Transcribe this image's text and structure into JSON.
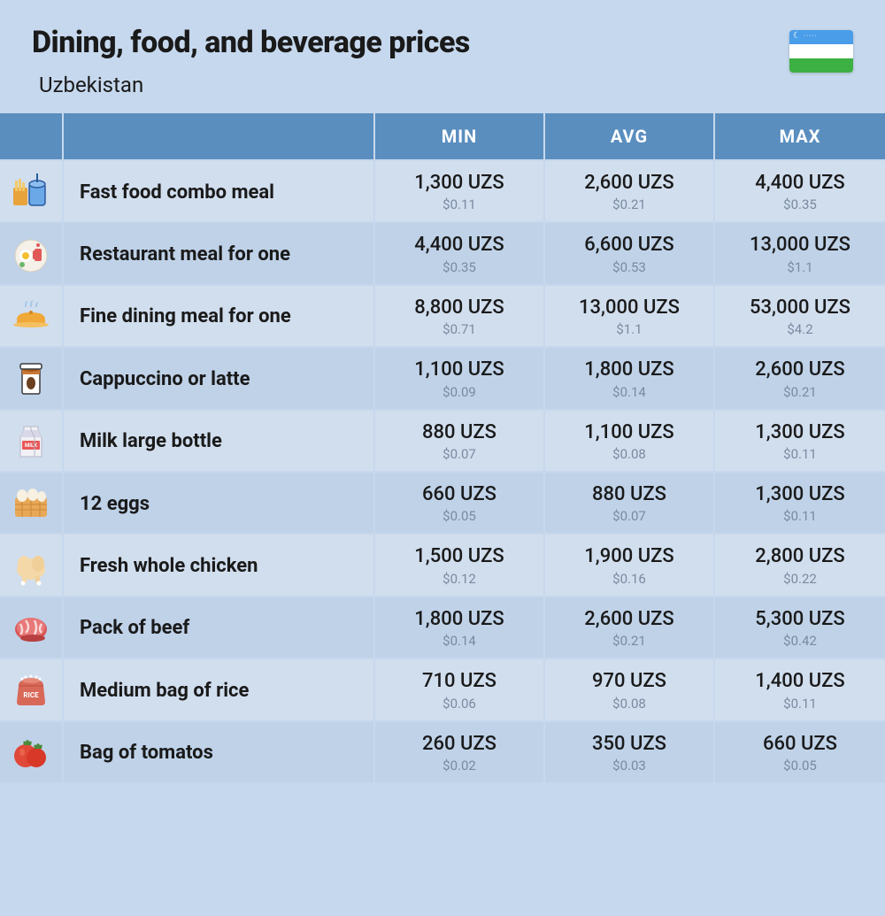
{
  "title": "Dining, food, and beverage prices",
  "subtitle": "Uzbekistan",
  "flag_colors": {
    "top": "#4a9de8",
    "mid": "#ffffff",
    "bot": "#3cb043"
  },
  "columns": {
    "min": "MIN",
    "avg": "AVG",
    "max": "MAX"
  },
  "header_bg": "#5a8ebf",
  "row_colors": {
    "odd": "#d1deee",
    "even": "#bfd2e8"
  },
  "background": "#c6d8ed",
  "rows": [
    {
      "icon": "fast-food",
      "label": "Fast food combo meal",
      "min_local": "1,300 UZS",
      "min_usd": "$0.11",
      "avg_local": "2,600 UZS",
      "avg_usd": "$0.21",
      "max_local": "4,400 UZS",
      "max_usd": "$0.35"
    },
    {
      "icon": "restaurant",
      "label": "Restaurant meal for one",
      "min_local": "4,400 UZS",
      "min_usd": "$0.35",
      "avg_local": "6,600 UZS",
      "avg_usd": "$0.53",
      "max_local": "13,000 UZS",
      "max_usd": "$1.1"
    },
    {
      "icon": "fine-dining",
      "label": "Fine dining meal for one",
      "min_local": "8,800 UZS",
      "min_usd": "$0.71",
      "avg_local": "13,000 UZS",
      "avg_usd": "$1.1",
      "max_local": "53,000 UZS",
      "max_usd": "$4.2"
    },
    {
      "icon": "coffee",
      "label": "Cappuccino or latte",
      "min_local": "1,100 UZS",
      "min_usd": "$0.09",
      "avg_local": "1,800 UZS",
      "avg_usd": "$0.14",
      "max_local": "2,600 UZS",
      "max_usd": "$0.21"
    },
    {
      "icon": "milk",
      "label": "Milk large bottle",
      "min_local": "880 UZS",
      "min_usd": "$0.07",
      "avg_local": "1,100 UZS",
      "avg_usd": "$0.08",
      "max_local": "1,300 UZS",
      "max_usd": "$0.11"
    },
    {
      "icon": "eggs",
      "label": "12 eggs",
      "min_local": "660 UZS",
      "min_usd": "$0.05",
      "avg_local": "880 UZS",
      "avg_usd": "$0.07",
      "max_local": "1,300 UZS",
      "max_usd": "$0.11"
    },
    {
      "icon": "chicken",
      "label": "Fresh whole chicken",
      "min_local": "1,500 UZS",
      "min_usd": "$0.12",
      "avg_local": "1,900 UZS",
      "avg_usd": "$0.16",
      "max_local": "2,800 UZS",
      "max_usd": "$0.22"
    },
    {
      "icon": "beef",
      "label": "Pack of beef",
      "min_local": "1,800 UZS",
      "min_usd": "$0.14",
      "avg_local": "2,600 UZS",
      "avg_usd": "$0.21",
      "max_local": "5,300 UZS",
      "max_usd": "$0.42"
    },
    {
      "icon": "rice",
      "label": "Medium bag of rice",
      "min_local": "710 UZS",
      "min_usd": "$0.06",
      "avg_local": "970 UZS",
      "avg_usd": "$0.08",
      "max_local": "1,400 UZS",
      "max_usd": "$0.11"
    },
    {
      "icon": "tomato",
      "label": "Bag of tomatos",
      "min_local": "260 UZS",
      "min_usd": "$0.02",
      "avg_local": "350 UZS",
      "avg_usd": "$0.03",
      "max_local": "660 UZS",
      "max_usd": "$0.05"
    }
  ]
}
